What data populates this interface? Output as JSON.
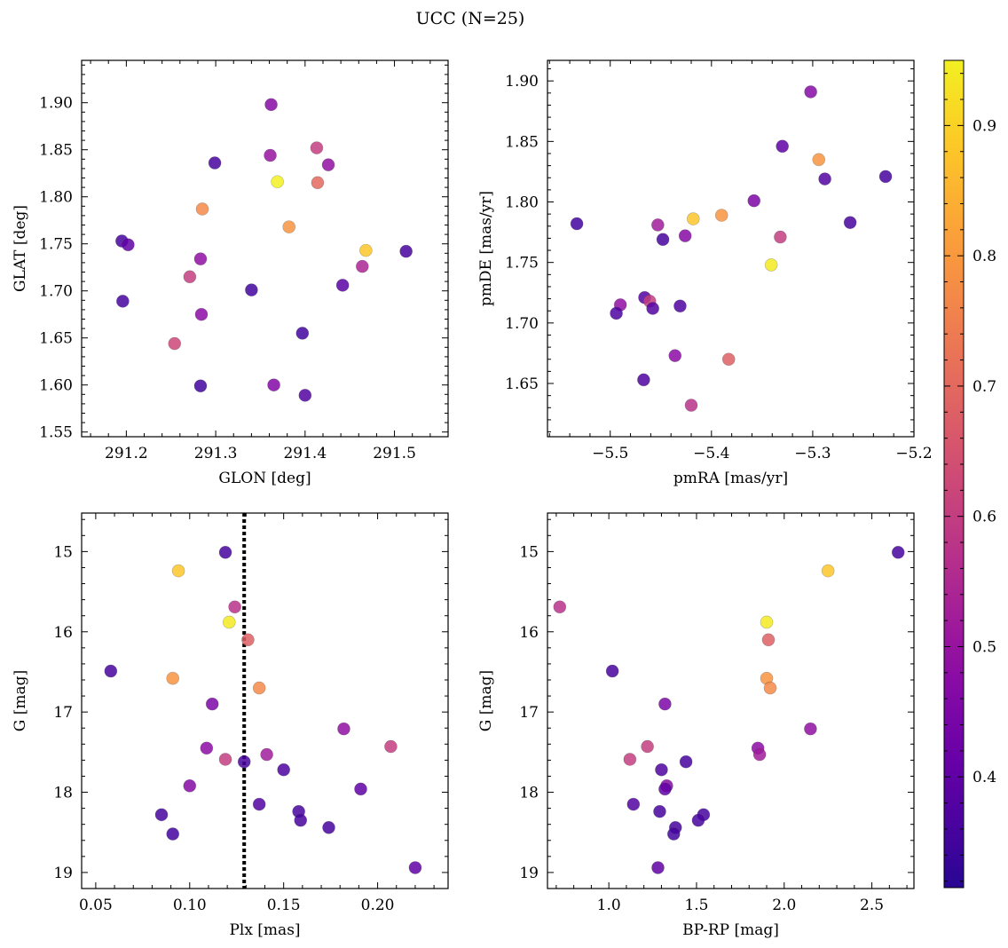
{
  "figure": {
    "title": "UCC (N=25)"
  },
  "chart_data": [
    {
      "type": "scatter",
      "xlabel": "GLON [deg]",
      "ylabel": "GLAT [deg]",
      "xlim": [
        291.15,
        291.56
      ],
      "ylim": [
        1.545,
        1.945
      ],
      "xticks": [
        291.2,
        291.3,
        291.4,
        291.5
      ],
      "xtick_labels": [
        "291.2",
        "291.3",
        "291.4",
        "291.5"
      ],
      "yticks": [
        1.55,
        1.6,
        1.65,
        1.7,
        1.75,
        1.8,
        1.85,
        1.9
      ],
      "ytick_labels": [
        "1.55",
        "1.60",
        "1.65",
        "1.70",
        "1.75",
        "1.80",
        "1.85",
        "1.90"
      ],
      "invert_y": false,
      "points": [
        {
          "x": 291.362,
          "y": 1.898,
          "c": 0.47
        },
        {
          "x": 291.413,
          "y": 1.852,
          "c": 0.6
        },
        {
          "x": 291.361,
          "y": 1.844,
          "c": 0.5
        },
        {
          "x": 291.426,
          "y": 1.834,
          "c": 0.49
        },
        {
          "x": 291.299,
          "y": 1.836,
          "c": 0.36
        },
        {
          "x": 291.369,
          "y": 1.816,
          "c": 0.95
        },
        {
          "x": 291.414,
          "y": 1.815,
          "c": 0.7
        },
        {
          "x": 291.285,
          "y": 1.787,
          "c": 0.77
        },
        {
          "x": 291.382,
          "y": 1.768,
          "c": 0.79
        },
        {
          "x": 291.195,
          "y": 1.753,
          "c": 0.36
        },
        {
          "x": 291.202,
          "y": 1.749,
          "c": 0.4
        },
        {
          "x": 291.468,
          "y": 1.743,
          "c": 0.88
        },
        {
          "x": 291.513,
          "y": 1.742,
          "c": 0.36
        },
        {
          "x": 291.283,
          "y": 1.734,
          "c": 0.49
        },
        {
          "x": 291.464,
          "y": 1.726,
          "c": 0.54
        },
        {
          "x": 291.271,
          "y": 1.715,
          "c": 0.6
        },
        {
          "x": 291.442,
          "y": 1.706,
          "c": 0.39
        },
        {
          "x": 291.34,
          "y": 1.701,
          "c": 0.35
        },
        {
          "x": 291.196,
          "y": 1.689,
          "c": 0.36
        },
        {
          "x": 291.284,
          "y": 1.675,
          "c": 0.48
        },
        {
          "x": 291.397,
          "y": 1.655,
          "c": 0.35
        },
        {
          "x": 291.254,
          "y": 1.644,
          "c": 0.62
        },
        {
          "x": 291.365,
          "y": 1.6,
          "c": 0.46
        },
        {
          "x": 291.283,
          "y": 1.599,
          "c": 0.35
        },
        {
          "x": 291.4,
          "y": 1.589,
          "c": 0.38
        }
      ]
    },
    {
      "type": "scatter",
      "xlabel": "pmRA [mas/yr]",
      "ylabel": "pmDE [mas/yr]",
      "xlim": [
        -5.562,
        -5.2
      ],
      "ylim": [
        1.606,
        1.917
      ],
      "xticks": [
        -5.5,
        -5.4,
        -5.3,
        -5.2
      ],
      "xtick_labels": [
        "−5.5",
        "−5.4",
        "−5.3",
        "−5.2"
      ],
      "yticks": [
        1.65,
        1.7,
        1.75,
        1.8,
        1.85,
        1.9
      ],
      "ytick_labels": [
        "1.65",
        "1.70",
        "1.75",
        "1.80",
        "1.85",
        "1.90"
      ],
      "invert_y": false,
      "points": [
        {
          "x": -5.302,
          "y": 1.891,
          "c": 0.47
        },
        {
          "x": -5.33,
          "y": 1.846,
          "c": 0.4
        },
        {
          "x": -5.294,
          "y": 1.835,
          "c": 0.79
        },
        {
          "x": -5.228,
          "y": 1.821,
          "c": 0.36
        },
        {
          "x": -5.288,
          "y": 1.819,
          "c": 0.38
        },
        {
          "x": -5.358,
          "y": 1.801,
          "c": 0.45
        },
        {
          "x": -5.39,
          "y": 1.789,
          "c": 0.79
        },
        {
          "x": -5.418,
          "y": 1.786,
          "c": 0.88
        },
        {
          "x": -5.263,
          "y": 1.783,
          "c": 0.36
        },
        {
          "x": -5.533,
          "y": 1.782,
          "c": 0.35
        },
        {
          "x": -5.453,
          "y": 1.781,
          "c": 0.52
        },
        {
          "x": -5.426,
          "y": 1.772,
          "c": 0.47
        },
        {
          "x": -5.332,
          "y": 1.771,
          "c": 0.6
        },
        {
          "x": -5.448,
          "y": 1.769,
          "c": 0.36
        },
        {
          "x": -5.341,
          "y": 1.748,
          "c": 0.94
        },
        {
          "x": -5.466,
          "y": 1.721,
          "c": 0.38
        },
        {
          "x": -5.461,
          "y": 1.718,
          "c": 0.6
        },
        {
          "x": -5.49,
          "y": 1.715,
          "c": 0.49
        },
        {
          "x": -5.431,
          "y": 1.714,
          "c": 0.37
        },
        {
          "x": -5.458,
          "y": 1.712,
          "c": 0.38
        },
        {
          "x": -5.494,
          "y": 1.708,
          "c": 0.37
        },
        {
          "x": -5.436,
          "y": 1.673,
          "c": 0.48
        },
        {
          "x": -5.383,
          "y": 1.67,
          "c": 0.68
        },
        {
          "x": -5.467,
          "y": 1.653,
          "c": 0.37
        },
        {
          "x": -5.42,
          "y": 1.632,
          "c": 0.57
        }
      ]
    },
    {
      "type": "scatter",
      "xlabel": "Plx [mas]",
      "ylabel": "G [mag]",
      "xlim": [
        0.0425,
        0.2375
      ],
      "ylim": [
        14.52,
        19.2
      ],
      "xticks": [
        0.05,
        0.1,
        0.15,
        0.2
      ],
      "xtick_labels": [
        "0.05",
        "0.10",
        "0.15",
        "0.20"
      ],
      "yticks": [
        15,
        16,
        17,
        18,
        19
      ],
      "ytick_labels": [
        "15",
        "16",
        "17",
        "18",
        "19"
      ],
      "invert_y": true,
      "vline": 0.129,
      "points": [
        {
          "x": 0.119,
          "y": 15.01,
          "c": 0.36
        },
        {
          "x": 0.094,
          "y": 15.24,
          "c": 0.88
        },
        {
          "x": 0.124,
          "y": 15.69,
          "c": 0.57
        },
        {
          "x": 0.121,
          "y": 15.88,
          "c": 0.94
        },
        {
          "x": 0.131,
          "y": 16.1,
          "c": 0.68
        },
        {
          "x": 0.058,
          "y": 16.49,
          "c": 0.36
        },
        {
          "x": 0.091,
          "y": 16.58,
          "c": 0.79
        },
        {
          "x": 0.137,
          "y": 16.7,
          "c": 0.77
        },
        {
          "x": 0.112,
          "y": 16.9,
          "c": 0.45
        },
        {
          "x": 0.182,
          "y": 17.21,
          "c": 0.49
        },
        {
          "x": 0.207,
          "y": 17.43,
          "c": 0.6
        },
        {
          "x": 0.109,
          "y": 17.45,
          "c": 0.48
        },
        {
          "x": 0.141,
          "y": 17.53,
          "c": 0.52
        },
        {
          "x": 0.119,
          "y": 17.59,
          "c": 0.6
        },
        {
          "x": 0.129,
          "y": 17.62,
          "c": 0.36
        },
        {
          "x": 0.15,
          "y": 17.72,
          "c": 0.37
        },
        {
          "x": 0.1,
          "y": 17.92,
          "c": 0.47
        },
        {
          "x": 0.191,
          "y": 17.96,
          "c": 0.4
        },
        {
          "x": 0.137,
          "y": 18.15,
          "c": 0.38
        },
        {
          "x": 0.158,
          "y": 18.24,
          "c": 0.36
        },
        {
          "x": 0.085,
          "y": 18.28,
          "c": 0.36
        },
        {
          "x": 0.159,
          "y": 18.35,
          "c": 0.36
        },
        {
          "x": 0.174,
          "y": 18.44,
          "c": 0.36
        },
        {
          "x": 0.091,
          "y": 18.52,
          "c": 0.35
        },
        {
          "x": 0.22,
          "y": 18.94,
          "c": 0.4
        }
      ]
    },
    {
      "type": "scatter",
      "xlabel": "BP-RP [mag]",
      "ylabel": "G [mag]",
      "xlim": [
        0.65,
        2.74
      ],
      "ylim": [
        14.52,
        19.2
      ],
      "xticks": [
        1.0,
        1.5,
        2.0,
        2.5
      ],
      "xtick_labels": [
        "1.0",
        "1.5",
        "2.0",
        "2.5"
      ],
      "yticks": [
        15,
        16,
        17,
        18,
        19
      ],
      "ytick_labels": [
        "15",
        "16",
        "17",
        "18",
        "19"
      ],
      "invert_y": true,
      "points": [
        {
          "x": 2.65,
          "y": 15.01,
          "c": 0.36
        },
        {
          "x": 2.25,
          "y": 15.24,
          "c": 0.88
        },
        {
          "x": 0.72,
          "y": 15.69,
          "c": 0.57
        },
        {
          "x": 1.9,
          "y": 15.88,
          "c": 0.94
        },
        {
          "x": 1.91,
          "y": 16.1,
          "c": 0.68
        },
        {
          "x": 1.02,
          "y": 16.49,
          "c": 0.36
        },
        {
          "x": 1.9,
          "y": 16.58,
          "c": 0.79
        },
        {
          "x": 1.92,
          "y": 16.7,
          "c": 0.77
        },
        {
          "x": 1.32,
          "y": 16.9,
          "c": 0.45
        },
        {
          "x": 2.15,
          "y": 17.21,
          "c": 0.49
        },
        {
          "x": 1.22,
          "y": 17.43,
          "c": 0.6
        },
        {
          "x": 1.85,
          "y": 17.45,
          "c": 0.48
        },
        {
          "x": 1.86,
          "y": 17.53,
          "c": 0.52
        },
        {
          "x": 1.12,
          "y": 17.59,
          "c": 0.6
        },
        {
          "x": 1.44,
          "y": 17.62,
          "c": 0.36
        },
        {
          "x": 1.3,
          "y": 17.72,
          "c": 0.37
        },
        {
          "x": 1.33,
          "y": 17.92,
          "c": 0.47
        },
        {
          "x": 1.32,
          "y": 17.96,
          "c": 0.4
        },
        {
          "x": 1.14,
          "y": 18.15,
          "c": 0.38
        },
        {
          "x": 1.29,
          "y": 18.24,
          "c": 0.36
        },
        {
          "x": 1.54,
          "y": 18.28,
          "c": 0.36
        },
        {
          "x": 1.51,
          "y": 18.35,
          "c": 0.36
        },
        {
          "x": 1.38,
          "y": 18.44,
          "c": 0.36
        },
        {
          "x": 1.37,
          "y": 18.52,
          "c": 0.35
        },
        {
          "x": 1.28,
          "y": 18.94,
          "c": 0.4
        }
      ]
    }
  ],
  "colorbar": {
    "min": 0.315,
    "max": 0.95,
    "ticks": [
      0.4,
      0.5,
      0.6,
      0.7,
      0.8,
      0.9
    ],
    "tick_labels": [
      "0.4",
      "0.5",
      "0.6",
      "0.7",
      "0.8",
      "0.9"
    ],
    "colormap": "plasma",
    "colormap_min": 0.05,
    "colormap_max": 0.98
  }
}
